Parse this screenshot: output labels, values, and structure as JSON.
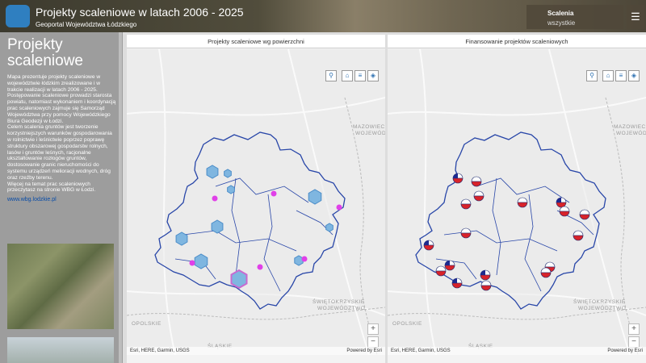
{
  "header": {
    "title": "Projekty scaleniowe w latach 2006 - 2025",
    "subtitle": "Geoportal Województwa Łódzkiego",
    "filter_label": "Scalenia",
    "filter_value": "wszystkie"
  },
  "sidebar": {
    "title": "Projekty scaleniowe",
    "paragraphs": [
      "Mapa prezentuje projekty scaleniowe w województwie łódzkim zrealizowane i w trakcie realizacji w latach 2006 - 2025.",
      "Postępowanie scaleniowe prowadzi starosta powiatu, natomiast wykonaniem i koordynacją prac scaleniowych zajmuje się Samorząd Województwa przy pomocy Wojewódzkiego Biura Geodezji w Łodzi.",
      "Celem scalenia gruntów jest tworzenie korzystniejszych warunków gospodarowania w rolnictwie i leśnictwie poprzez poprawę struktury obszarowej gospodarstw rolnych, lasów i gruntów leśnych, racjonalne ukształtowanie rozłogów gruntów, dostosowanie granic nieruchomości do systemu urządzeń melioracji wodnych, dróg oraz rzeźby terenu.",
      "Więcej na temat prac scaleniowych przeczytasz na stronie WBG w Łodzi."
    ],
    "link": "www.wbg.lodzkie.pl"
  },
  "maps": [
    {
      "title": "Projekty scaleniowe wg powierzchni",
      "labels": [
        "MAZOWIECKIE",
        "WOJEWÓDZTWO",
        "ŚWIĘTOKRZYSKIE",
        "WOJEWÓDZTWO",
        "OPOLSKIE",
        "ŚLĄSKIE"
      ],
      "attribution": "Esri, HERE, Garmin, USGS",
      "powered": "Powered by Esri"
    },
    {
      "title": "Finansowanie projektów scaleniowych",
      "labels": [
        "MAZOWIECKIE",
        "WOJEWÓDZTWO",
        "ŚWIĘTOKRZYSKIE",
        "WOJEWÓDZTWO",
        "OPOLSKIE",
        "ŚLĄSKIE"
      ],
      "attribution": "Esri, HERE, Garmin, USGS",
      "powered": "Powered by Esri"
    }
  ]
}
